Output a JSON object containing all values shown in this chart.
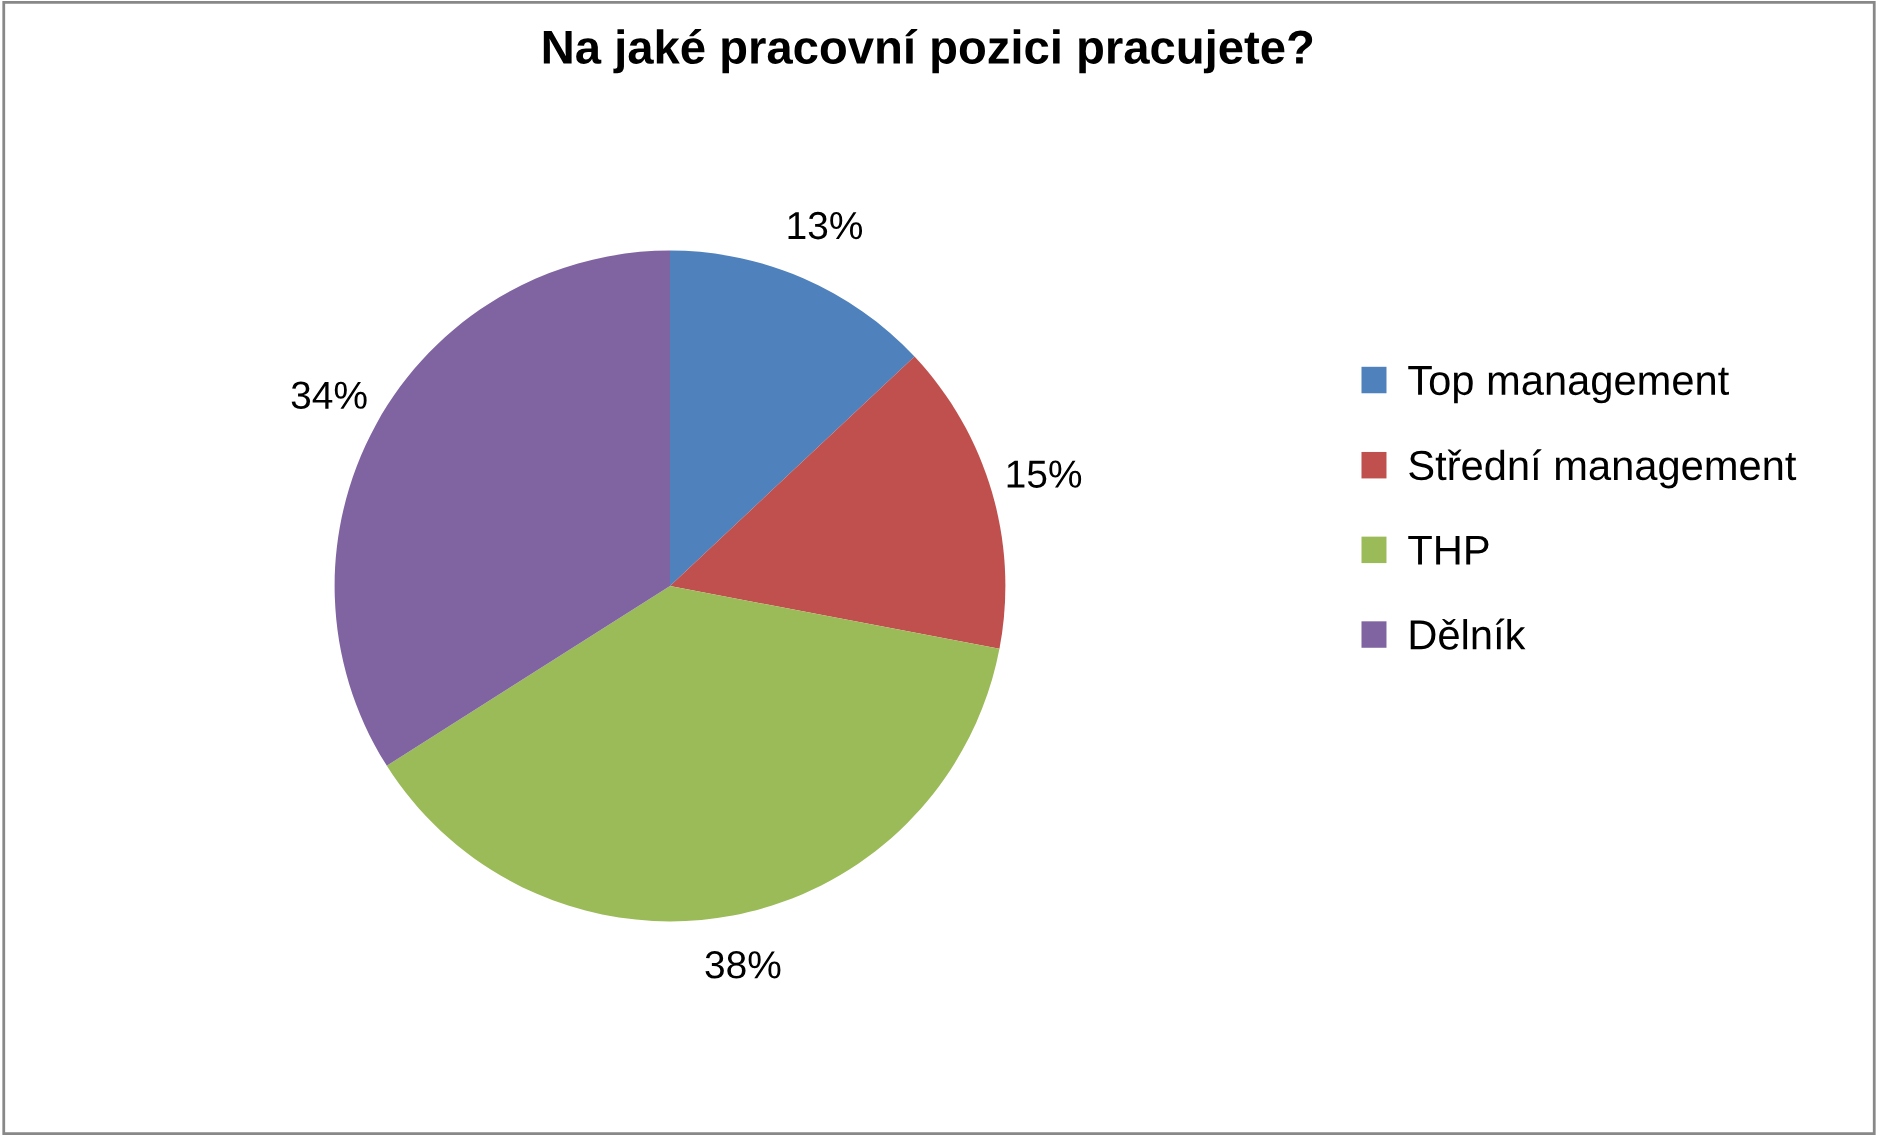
{
  "chart_data": {
    "type": "pie",
    "title": "Na jaké pracovní pozici pracujete?",
    "categories": [
      "Top management",
      "Střední management",
      "THP",
      "Dělník"
    ],
    "values": [
      13,
      15,
      38,
      34
    ],
    "colors": [
      "#4f81bd",
      "#c0504d",
      "#9bbb59",
      "#8064a2"
    ],
    "value_labels": [
      "13%",
      "15%",
      "38%",
      "34%"
    ],
    "legend": "right"
  }
}
